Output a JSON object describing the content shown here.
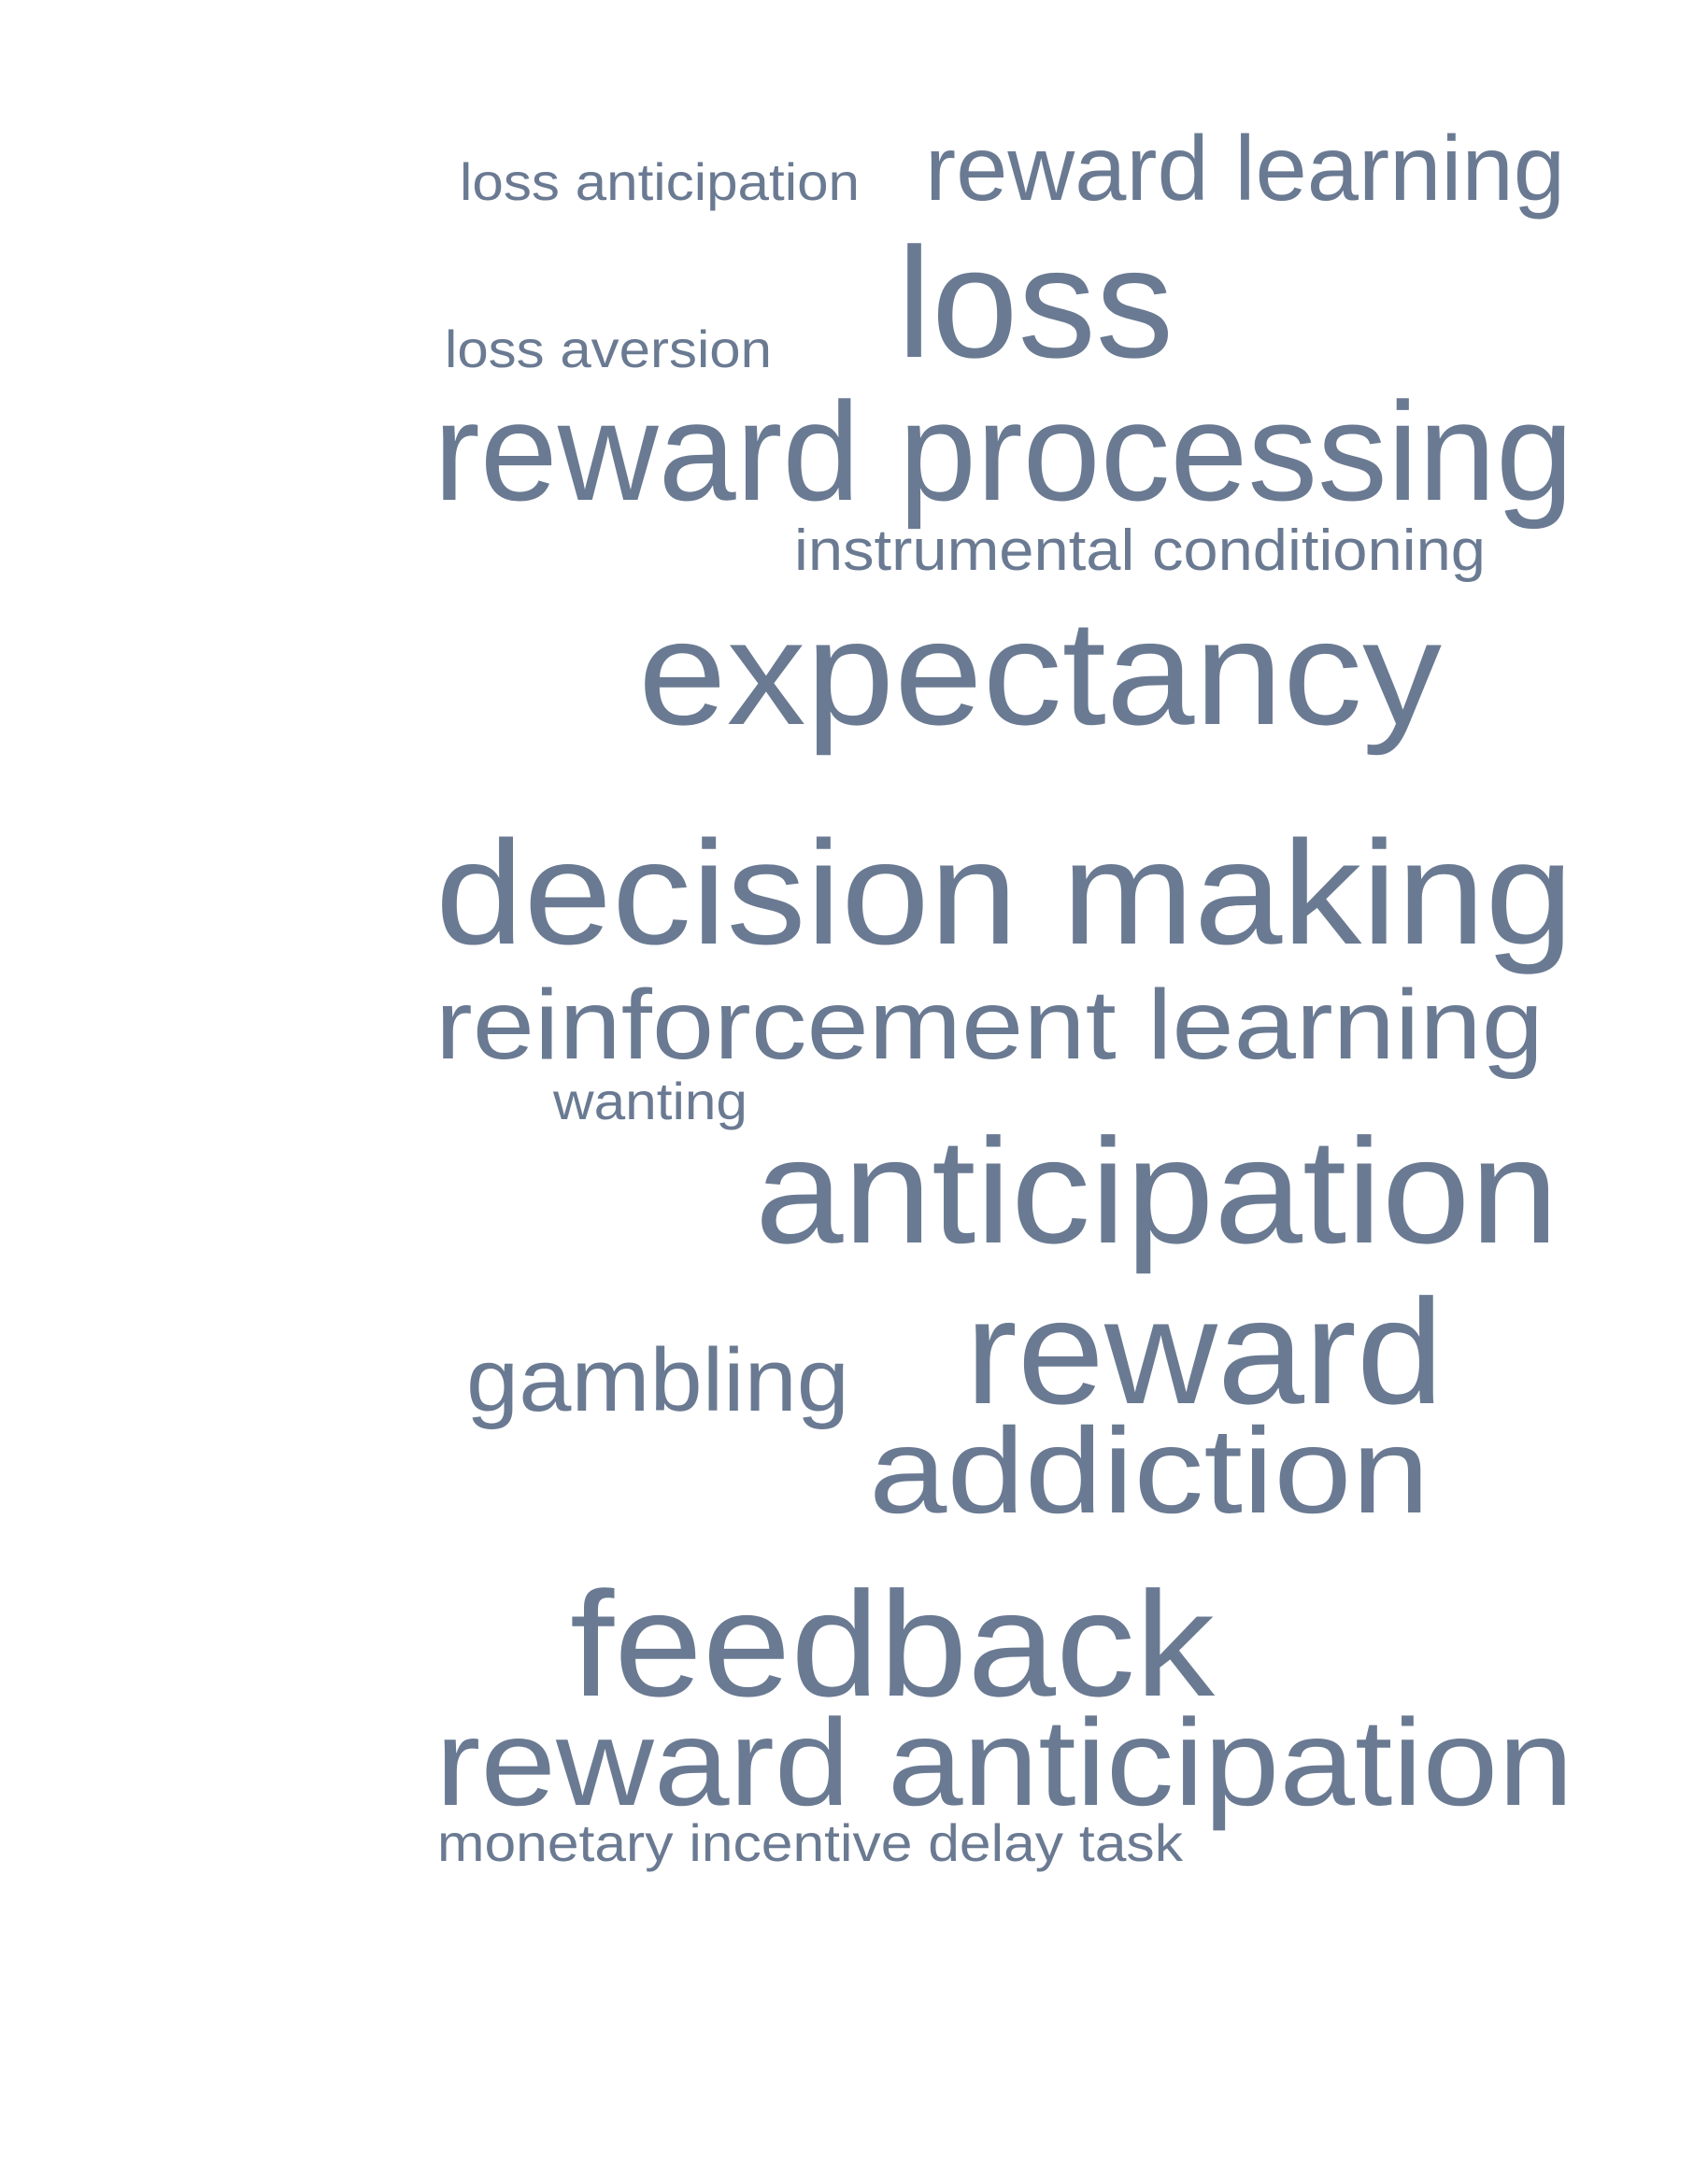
{
  "word_cloud": {
    "color": "#6a7a92",
    "background": "#ffffff",
    "words": [
      "loss anticipation",
      "reward learning",
      "loss",
      "loss aversion",
      "reward processing",
      "instrumental conditioning",
      "expectancy",
      "decision making",
      "reinforcement learning",
      "wanting",
      "anticipation",
      "gambling",
      "reward",
      "addiction",
      "feedback",
      "reward anticipation",
      "monetary incentive delay task"
    ]
  }
}
